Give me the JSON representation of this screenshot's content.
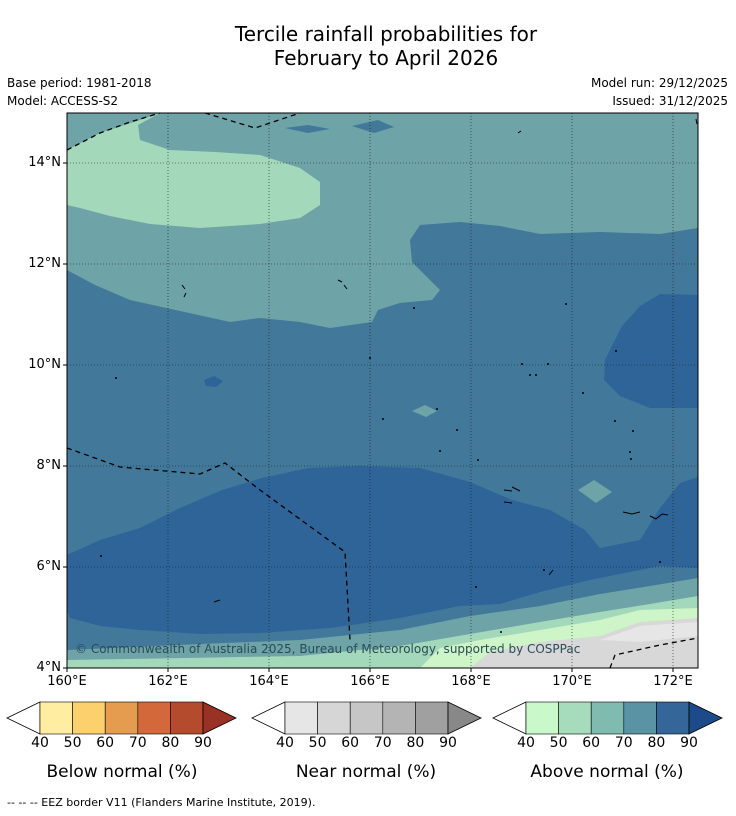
{
  "title": {
    "line1": "Tercile rainfall probabilities for",
    "line2": "February to April 2026"
  },
  "metadata": {
    "base_period": "Base period: 1981-2018",
    "model": "Model: ACCESS-S2",
    "model_run": "Model run: 29/12/2025",
    "issued": "Issued: 31/12/2025"
  },
  "map": {
    "y_ticks": [
      "14°N",
      "12°N",
      "10°N",
      "8°N",
      "6°N",
      "4°N"
    ],
    "x_ticks": [
      "160°E",
      "162°E",
      "164°E",
      "166°E",
      "168°E",
      "170°E",
      "172°E"
    ],
    "copyright": "© Commonwealth of Australia 2025, Bureau of Meteorology, supported by COSPPac",
    "colors": {
      "above_50": "#a3d8bb",
      "above_60": "#7fb8ad",
      "above_70": "#6ea3a7",
      "above_80": "#42789a",
      "above_90": "#2f6499",
      "near_50": "#d8d8d8",
      "light_green": "#cdf5c8"
    }
  },
  "colorbars": [
    {
      "title": "Below normal (%)",
      "labels": [
        "40",
        "50",
        "60",
        "70",
        "80",
        "90"
      ],
      "colors": [
        "#ffeea2",
        "#fdd06e",
        "#e59c4e",
        "#d3683a",
        "#b34b2c",
        "#993224"
      ]
    },
    {
      "title": "Near normal (%)",
      "labels": [
        "40",
        "50",
        "60",
        "70",
        "80",
        "90"
      ],
      "colors": [
        "#e6e6e6",
        "#d6d6d6",
        "#c6c6c6",
        "#b4b4b4",
        "#a0a0a0",
        "#888888"
      ]
    },
    {
      "title": "Above normal (%)",
      "labels": [
        "40",
        "50",
        "60",
        "70",
        "80",
        "90"
      ],
      "colors": [
        "#c9f9cb",
        "#a6dbbc",
        "#80bbaf",
        "#5a94a4",
        "#34669a",
        "#1c4a8a"
      ]
    }
  ],
  "footnote": "--  --  -- EEZ border V11 (Flanders Marine Institute, 2019)."
}
